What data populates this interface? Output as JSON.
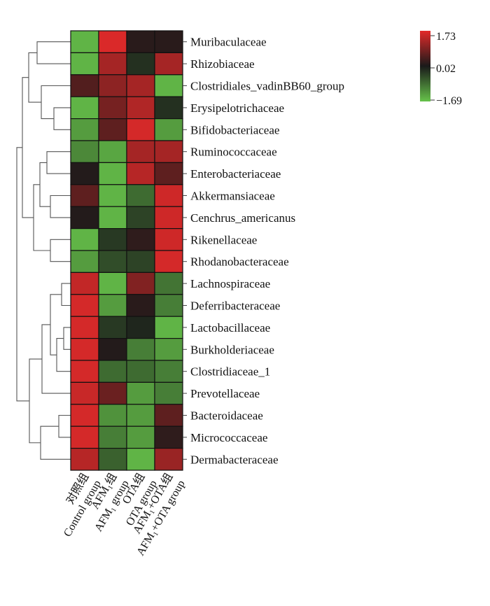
{
  "chart_data": {
    "type": "heatmap",
    "rows": [
      "Muribaculaceae",
      "Rhizobiaceae",
      "Clostridiales_vadinBB60_group",
      "Erysipelotrichaceae",
      "Bifidobacteriaceae",
      "Ruminococcaceae",
      "Enterobacteriaceae",
      "Akkermansiaceae",
      "Cenchrus_americanus",
      "Rikenellaceae",
      "Rhodanobacteraceae",
      "Lachnospiraceae",
      "Deferribacteraceae",
      "Lactobacillaceae",
      "Burkholderiaceae",
      "Clostridiaceae_1",
      "Prevotellaceae",
      "Bacteroidaceae",
      "Micrococcaceae",
      "Dermabacteraceae"
    ],
    "columns": [
      {
        "line1": "对照组",
        "line2": "Control group"
      },
      {
        "line1": "AFM₁组",
        "line2": "AFM₁ group"
      },
      {
        "line1": "OTA组",
        "line2": "OTA group"
      },
      {
        "line1": "AFM₁+OTA组",
        "line2": "AFM₁+OTA group"
      }
    ],
    "values": [
      [
        -1.55,
        1.65,
        0.15,
        0.15
      ],
      [
        -1.55,
        1.2,
        -0.2,
        1.2
      ],
      [
        0.5,
        1.0,
        1.2,
        -1.55
      ],
      [
        -1.55,
        0.8,
        1.3,
        -0.2
      ],
      [
        -1.3,
        0.6,
        1.6,
        -1.3
      ],
      [
        -1.1,
        -1.4,
        1.2,
        1.2
      ],
      [
        0.1,
        -1.55,
        1.35,
        0.6
      ],
      [
        0.6,
        -1.55,
        -0.8,
        1.55
      ],
      [
        0.1,
        -1.55,
        -0.4,
        1.55
      ],
      [
        -1.55,
        -0.3,
        0.2,
        1.55
      ],
      [
        -1.3,
        -0.5,
        -0.4,
        1.6
      ],
      [
        1.45,
        -1.55,
        0.9,
        -0.9
      ],
      [
        1.6,
        -1.3,
        0.15,
        -1.0
      ],
      [
        1.6,
        -0.3,
        -0.1,
        -1.55
      ],
      [
        1.6,
        0.1,
        -1.0,
        -1.3
      ],
      [
        1.6,
        -0.8,
        -0.8,
        -1.0
      ],
      [
        1.5,
        0.7,
        -1.3,
        -1.0
      ],
      [
        1.6,
        -1.2,
        -1.3,
        0.6
      ],
      [
        1.6,
        -1.0,
        -1.3,
        0.2
      ],
      [
        1.35,
        -0.7,
        -1.55,
        1.1
      ]
    ],
    "color_scale": {
      "min": -1.69,
      "mid": 0.02,
      "max": 1.73,
      "min_label": "−1.69",
      "mid_label": "0.02",
      "max_label": "1.73",
      "colors": [
        "#66c24a",
        "#1a1a1a",
        "#e32a2a"
      ]
    },
    "dendrogram": "row clustering tree drawn on the left"
  }
}
